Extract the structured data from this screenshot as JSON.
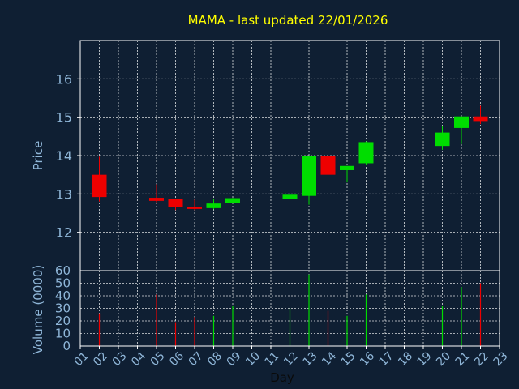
{
  "chart_data": {
    "type": "candlestick",
    "title": "MAMA - last updated 22/01/2026",
    "xlabel": "Day",
    "price_panel": {
      "ylabel": "Price",
      "ylim": [
        11,
        17
      ],
      "yticks": [
        "12",
        "13",
        "14",
        "15",
        "16"
      ],
      "grid": true
    },
    "volume_panel": {
      "ylabel": "Volume (0000)",
      "ylim": [
        0,
        60
      ],
      "yticks": [
        "0",
        "10",
        "20",
        "30",
        "40",
        "50",
        "60"
      ],
      "grid": true
    },
    "x_ticks": [
      "01",
      "02",
      "03",
      "04",
      "05",
      "06",
      "07",
      "08",
      "09",
      "10",
      "11",
      "12",
      "13",
      "14",
      "15",
      "16",
      "17",
      "18",
      "19",
      "20",
      "21",
      "22",
      "23"
    ],
    "colors": {
      "up": "#00dd00",
      "down": "#ee0000",
      "title": "#ffff00",
      "axis_text": "#8fb6d8",
      "grid": "#ffffff",
      "background": "#0f1f33"
    },
    "candles": [
      {
        "day": 2,
        "open": 13.5,
        "high": 13.97,
        "low": 12.8,
        "close": 12.92,
        "volume": 26
      },
      {
        "day": 5,
        "open": 12.9,
        "high": 13.25,
        "low": 12.78,
        "close": 12.82,
        "volume": 41
      },
      {
        "day": 6,
        "open": 12.88,
        "high": 12.88,
        "low": 12.58,
        "close": 12.66,
        "volume": 19
      },
      {
        "day": 7,
        "open": 12.65,
        "high": 12.85,
        "low": 12.58,
        "close": 12.62,
        "volume": 23
      },
      {
        "day": 8,
        "open": 12.63,
        "high": 12.88,
        "low": 12.6,
        "close": 12.75,
        "volume": 24
      },
      {
        "day": 9,
        "open": 12.77,
        "high": 12.9,
        "low": 12.75,
        "close": 12.89,
        "volume": 32
      },
      {
        "day": 12,
        "open": 12.88,
        "high": 13.07,
        "low": 12.75,
        "close": 12.98,
        "volume": 30
      },
      {
        "day": 13,
        "open": 12.95,
        "high": 14.0,
        "low": 12.72,
        "close": 14.0,
        "volume": 57
      },
      {
        "day": 14,
        "open": 14.0,
        "high": 14.0,
        "low": 13.23,
        "close": 13.5,
        "volume": 28
      },
      {
        "day": 15,
        "open": 13.62,
        "high": 13.73,
        "low": 13.3,
        "close": 13.73,
        "volume": 24
      },
      {
        "day": 16,
        "open": 13.8,
        "high": 14.37,
        "low": 13.75,
        "close": 14.35,
        "volume": 41
      },
      {
        "day": 20,
        "open": 14.25,
        "high": 14.77,
        "low": 14.15,
        "close": 14.6,
        "volume": 32
      },
      {
        "day": 21,
        "open": 14.72,
        "high": 15.02,
        "low": 14.3,
        "close": 15.02,
        "volume": 47
      },
      {
        "day": 22,
        "open": 15.02,
        "high": 15.3,
        "low": 14.82,
        "close": 14.9,
        "volume": 50
      }
    ]
  }
}
